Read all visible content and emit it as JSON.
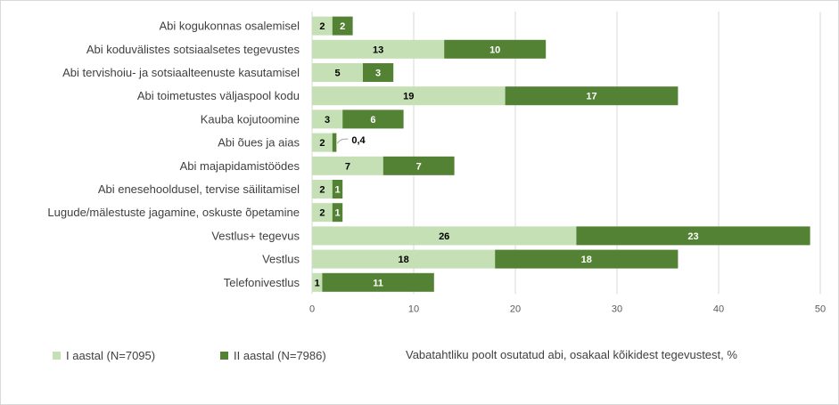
{
  "chart_data": {
    "type": "bar",
    "orientation": "horizontal",
    "stacked": true,
    "categories": [
      "Abi kogukonnas osalemisel",
      "Abi koduvälistes sotsiaalsetes tegevustes",
      "Abi tervishoiu- ja sotsiaalteenuste kasutamisel",
      "Abi toimetustes väljaspool kodu",
      "Kauba kojutoomine",
      "Abi õues ja aias",
      "Abi majapidamistöödes",
      "Abi enesehooldusel, tervise säilitamisel",
      "Lugude/mälestuste jagamine, oskuste õpetamine",
      "Vestlus+ tegevus",
      "Vestlus",
      "Telefonivestlus"
    ],
    "series": [
      {
        "name": "I aastal (N=7095)",
        "color": "#c5e0b4",
        "label_color": "#000000",
        "values": [
          2,
          13,
          5,
          19,
          3,
          2,
          7,
          2,
          2,
          26,
          18,
          1
        ],
        "labels": [
          "2",
          "13",
          "5",
          "19",
          "3",
          "2",
          "7",
          "2",
          "2",
          "26",
          "18",
          "1"
        ]
      },
      {
        "name": "II aastal (N=7986)",
        "color": "#548235",
        "label_color": "#ffffff",
        "values": [
          2,
          10,
          3,
          17,
          6,
          0.4,
          7,
          1,
          1,
          23,
          18,
          11
        ],
        "labels": [
          "2",
          "10",
          "3",
          "17",
          "6",
          "0,4",
          "7",
          "1",
          "1",
          "23",
          "18",
          "11"
        ]
      }
    ],
    "xlim": [
      0,
      50
    ],
    "xticks": [
      "0",
      "10",
      "20",
      "30",
      "40",
      "50"
    ],
    "xticks_values": [
      0,
      10,
      20,
      30,
      40,
      50
    ],
    "xlabel": "Vabatahtliku poolt osutatud abi, osakaal kõikidest tegevustest, %",
    "ylabel": "",
    "grid": "vertical",
    "legend_position": "bottom-left",
    "callout_category_index": 5
  }
}
